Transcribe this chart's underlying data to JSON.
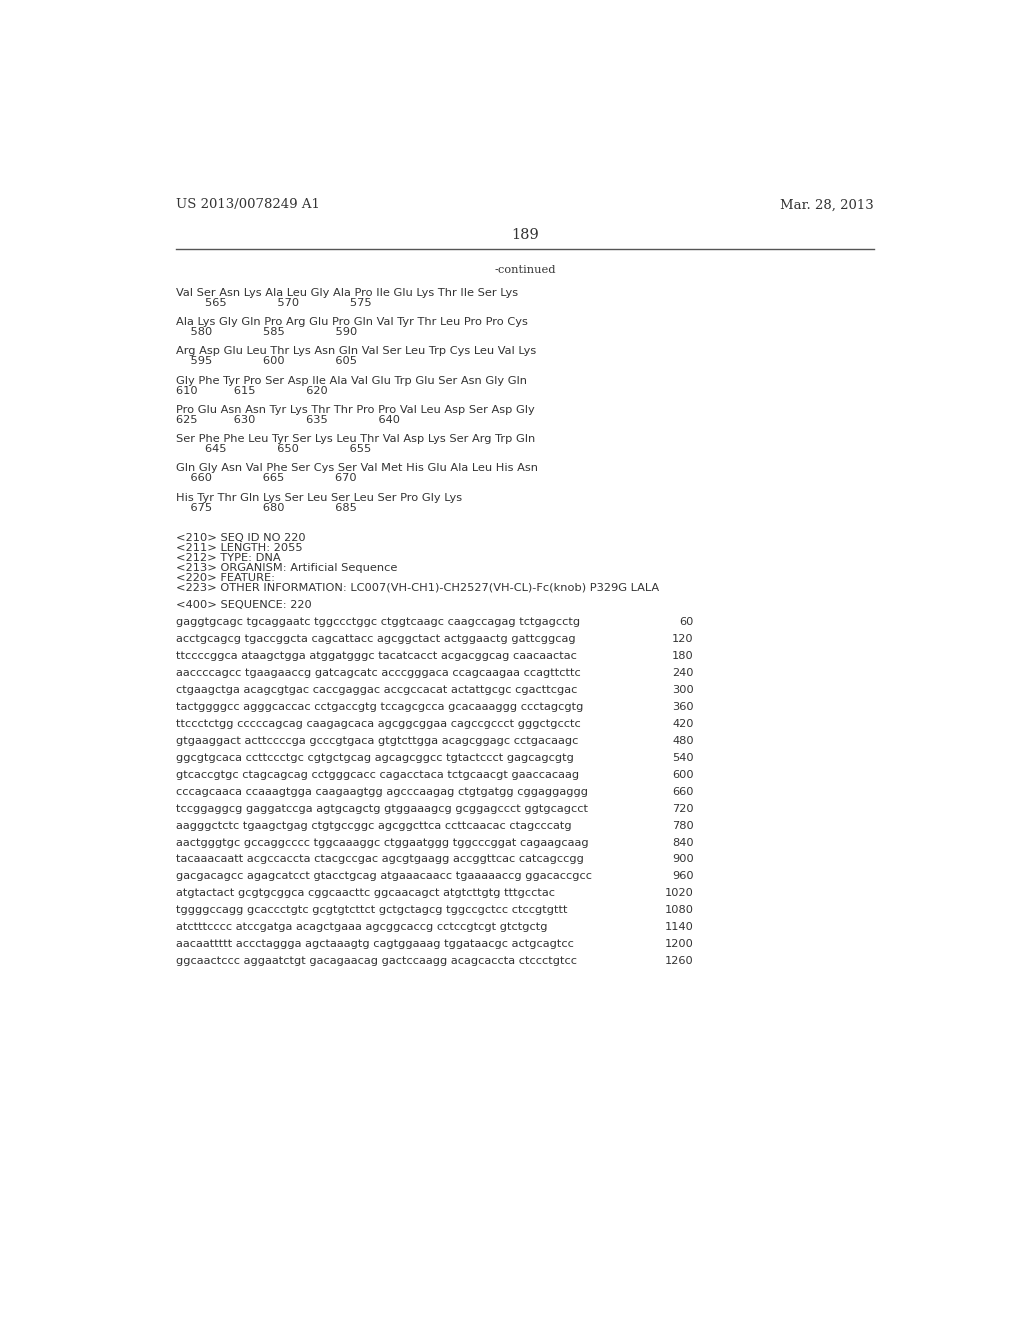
{
  "header_left": "US 2013/0078249 A1",
  "header_right": "Mar. 28, 2013",
  "page_number": "189",
  "continued_label": "-continued",
  "background_color": "#ffffff",
  "text_color": "#444444",
  "font_size_header": 9.5,
  "font_size_body": 8.2,
  "font_size_page": 10.5,
  "amino_acid_lines": [
    [
      "Val Ser Asn Lys Ala Leu Gly Ala Pro Ile Glu Lys Thr Ile Ser Lys",
      "        565              570              575"
    ],
    [
      "Ala Lys Gly Gln Pro Arg Glu Pro Gln Val Tyr Thr Leu Pro Pro Cys",
      "    580              585              590"
    ],
    [
      "Arg Asp Glu Leu Thr Lys Asn Gln Val Ser Leu Trp Cys Leu Val Lys",
      "    595              600              605"
    ],
    [
      "Gly Phe Tyr Pro Ser Asp Ile Ala Val Glu Trp Glu Ser Asn Gly Gln",
      "610          615              620"
    ],
    [
      "Pro Glu Asn Asn Tyr Lys Thr Thr Pro Pro Val Leu Asp Ser Asp Gly",
      "625          630              635              640"
    ],
    [
      "Ser Phe Phe Leu Tyr Ser Lys Leu Thr Val Asp Lys Ser Arg Trp Gln",
      "        645              650              655"
    ],
    [
      "Gln Gly Asn Val Phe Ser Cys Ser Val Met His Glu Ala Leu His Asn",
      "    660              665              670"
    ],
    [
      "His Tyr Thr Gln Lys Ser Leu Ser Leu Ser Pro Gly Lys",
      "    675              680              685"
    ]
  ],
  "metadata_lines": [
    "<210> SEQ ID NO 220",
    "<211> LENGTH: 2055",
    "<212> TYPE: DNA",
    "<213> ORGANISM: Artificial Sequence",
    "<220> FEATURE:",
    "<223> OTHER INFORMATION: LC007(VH-CH1)-CH2527(VH-CL)-Fc(knob) P329G LALA"
  ],
  "sequence_label": "<400> SEQUENCE: 220",
  "sequence_lines": [
    [
      "gaggtgcagc tgcaggaatc tggccctggc ctggtcaagc caagccagag tctgagcctg",
      "60"
    ],
    [
      "acctgcagcg tgaccggcta cagcattacc agcggctact actggaactg gattcggcag",
      "120"
    ],
    [
      "ttccccggca ataagctgga atggatgggc tacatcacct acgacggcag caacaactac",
      "180"
    ],
    [
      "aaccccagcc tgaagaaccg gatcagcatc acccgggaca ccagcaagaa ccagttcttc",
      "240"
    ],
    [
      "ctgaagctga acagcgtgac caccgaggac accgccacat actattgcgc cgacttcgac",
      "300"
    ],
    [
      "tactggggcc agggcaccac cctgaccgtg tccagcgcca gcacaaaggg ccctagcgtg",
      "360"
    ],
    [
      "ttccctctgg cccccagcag caagagcaca agcggcggaa cagccgccct gggctgcctc",
      "420"
    ],
    [
      "gtgaaggact acttccccga gcccgtgaca gtgtcttgga acagcggagc cctgacaagc",
      "480"
    ],
    [
      "ggcgtgcaca ccttccctgc cgtgctgcag agcagcggcc tgtactccct gagcagcgtg",
      "540"
    ],
    [
      "gtcaccgtgc ctagcagcag cctgggcacc cagacctaca tctgcaacgt gaaccacaag",
      "600"
    ],
    [
      "cccagcaaca ccaaagtgga caagaagtgg agcccaagag ctgtgatgg cggaggaggg",
      "660"
    ],
    [
      "tccggaggcg gaggatccga agtgcagctg gtggaaagcg gcggagccct ggtgcagcct",
      "720"
    ],
    [
      "aagggctctc tgaagctgag ctgtgccggc agcggcttca ccttcaacac ctagcccatg",
      "780"
    ],
    [
      "aactgggtgc gccaggcccc tggcaaaggc ctggaatggg tggcccggat cagaagcaag",
      "840"
    ],
    [
      "tacaaacaatt acgccaccta ctacgccgac agcgtgaagg accggttcac catcagccgg",
      "900"
    ],
    [
      "gacgacagcc agagcatcct gtacctgcag atgaaacaacc tgaaaaaccg ggacaccgcc",
      "960"
    ],
    [
      "atgtactact gcgtgcggca cggcaacttc ggcaacagct atgtcttgtg tttgcctac",
      "1020"
    ],
    [
      "tggggccagg gcaccctgtc gcgtgtcttct gctgctagcg tggccgctcc ctccgtgttt",
      "1080"
    ],
    [
      "atctttcccc atccgatga acagctgaaa agcggcaccg cctccgtcgt gtctgctg",
      "1140"
    ],
    [
      "aacaattttt accctaggga agctaaagtg cagtggaaag tggataacgc actgcagtcc",
      "1200"
    ],
    [
      "ggcaactccc aggaatctgt gacagaacag gactccaagg acagcaccta ctccctgtcc",
      "1260"
    ]
  ]
}
